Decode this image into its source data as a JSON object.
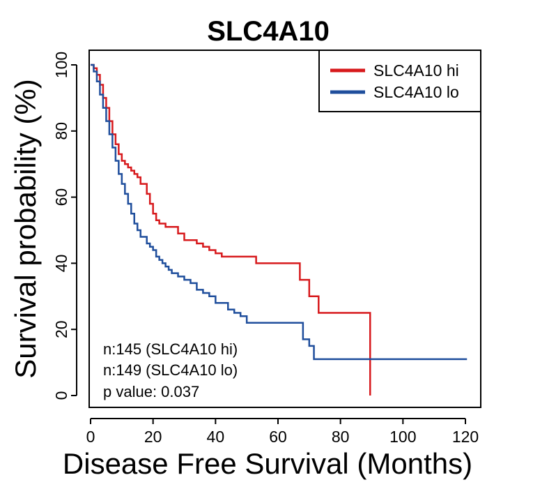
{
  "chart_data": {
    "type": "line",
    "title": "SLC4A10",
    "xlabel": "Disease Free Survival (Months)",
    "ylabel": "Survival probability (%)",
    "xlim": [
      0,
      120
    ],
    "ylim": [
      0,
      100
    ],
    "xticks": [
      "0",
      "20",
      "40",
      "60",
      "80",
      "100",
      "120"
    ],
    "yticks": [
      "0",
      "20",
      "40",
      "60",
      "80",
      "100"
    ],
    "legend_position": "top-right",
    "series": [
      {
        "name": "SLC4A10 hi",
        "color": "#d7191c",
        "x": [
          0,
          1,
          2,
          3,
          4,
          5,
          6,
          7,
          8,
          9,
          10,
          11,
          12,
          13,
          14,
          15,
          16,
          17,
          18,
          19,
          20,
          21,
          22,
          24,
          26,
          28,
          30,
          32,
          34,
          36,
          38,
          40,
          42,
          46,
          50,
          53,
          57,
          60,
          63,
          66,
          67,
          69,
          70,
          72,
          73,
          76,
          80,
          85,
          89.5,
          89.5
        ],
        "y": [
          100,
          99,
          97,
          94,
          90,
          87,
          83,
          79,
          76,
          73,
          71,
          70,
          69,
          68,
          67,
          66,
          64,
          64,
          61,
          58,
          55,
          53,
          52,
          51,
          51,
          49,
          47,
          47,
          46,
          45,
          44,
          43,
          42,
          42,
          42,
          40,
          40,
          40,
          40,
          40,
          35,
          35,
          30,
          30,
          25,
          25,
          25,
          25,
          25,
          0
        ]
      },
      {
        "name": "SLC4A10 lo",
        "color": "#1f4e9c",
        "x": [
          0,
          1,
          2,
          3,
          4,
          5,
          6,
          7,
          8,
          9,
          10,
          11,
          12,
          13,
          14,
          15,
          16,
          17,
          18,
          19,
          20,
          21,
          22,
          23,
          24,
          25,
          26,
          27,
          28,
          30,
          32,
          34,
          36,
          38,
          40,
          42,
          44,
          46,
          48,
          50,
          55,
          60,
          66,
          68,
          70,
          71.5,
          80,
          90,
          100,
          110,
          120.5
        ],
        "y": [
          100,
          98,
          95,
          91,
          87,
          83,
          79,
          75,
          71,
          67,
          64,
          61,
          58,
          55,
          52,
          50,
          48,
          48,
          46,
          45,
          44,
          42,
          41,
          40,
          39,
          38,
          37,
          37,
          36,
          35,
          34,
          32,
          31,
          30,
          28,
          28,
          26,
          25,
          24,
          22,
          22,
          22,
          22,
          17,
          15,
          11,
          11,
          11,
          11,
          11,
          11
        ]
      }
    ],
    "annotations": [
      "n:145 (SLC4A10 hi)",
      "n:149 (SLC4A10 lo)",
      "p value: 0.037"
    ]
  }
}
